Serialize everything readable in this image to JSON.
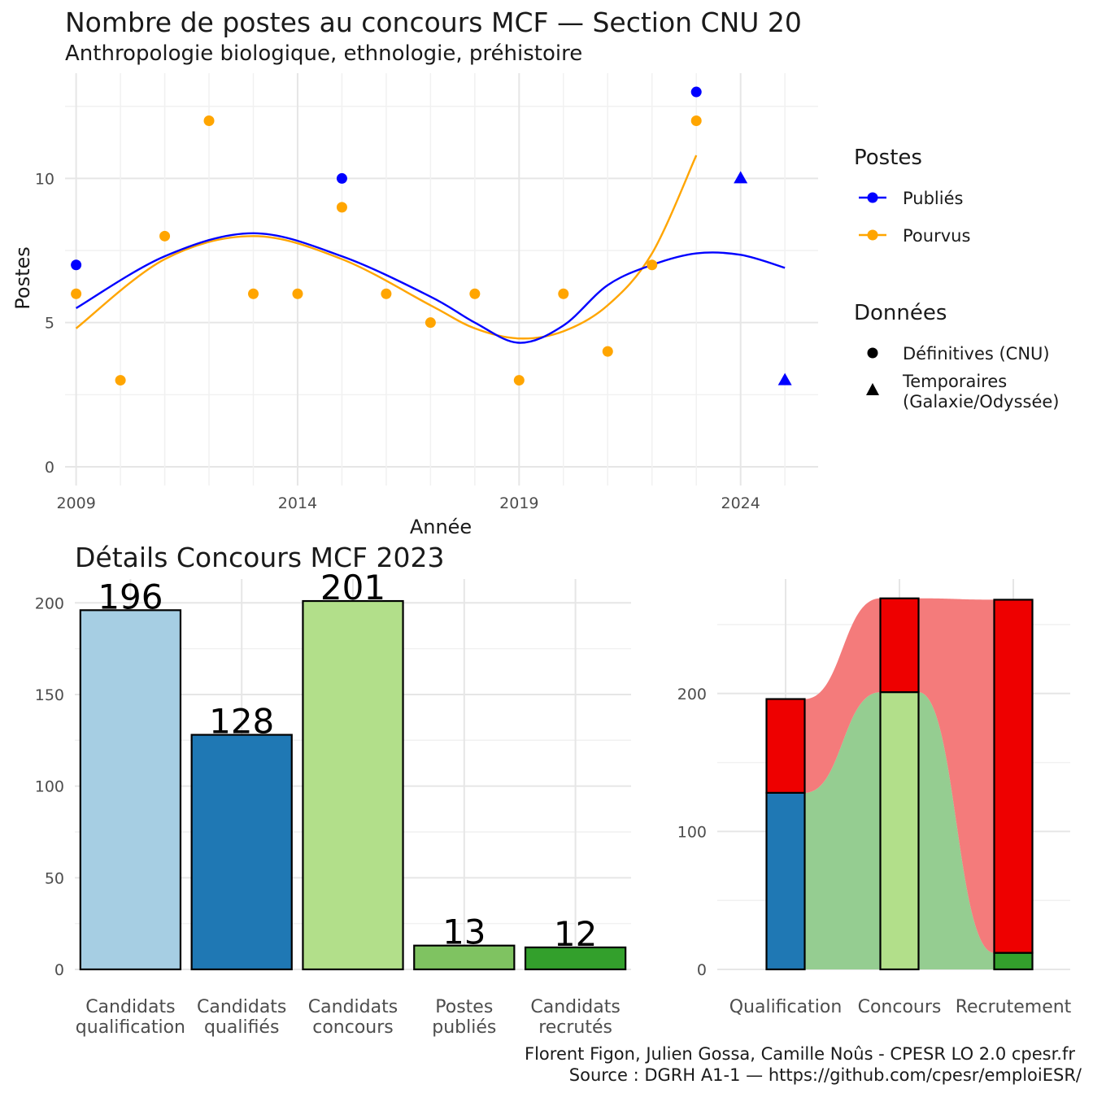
{
  "header": {
    "title": "Nombre de postes au concours MCF —  Section CNU 20",
    "subtitle": "Anthropologie biologique, ethnologie, préhistoire"
  },
  "legend": {
    "postes_title": "Postes",
    "postes_items": [
      {
        "label": "Publiés",
        "color": "#0000ff"
      },
      {
        "label": "Pourvus",
        "color": "#ffa500"
      }
    ],
    "donnees_title": "Données",
    "donnees_items": [
      {
        "label": "Définitives (CNU)",
        "shape": "circle"
      },
      {
        "label_line1": "Temporaires",
        "label_line2": "(Galaxie/Odyssée)",
        "shape": "triangle"
      }
    ]
  },
  "caption": {
    "line1": "Florent Figon, Julien Gossa, Camille Noûs - CPESR LO 2.0 cpesr.fr",
    "line2": "Source : DGRH A1-1 — https://github.com/cpesr/emploiESR/"
  },
  "chart_data": [
    {
      "type": "scatter",
      "xlabel": "Année",
      "ylabel": "Postes",
      "xlim": [
        2008.75,
        2025.75
      ],
      "ylim": [
        -0.65,
        13.65
      ],
      "x_ticks": [
        2009,
        2014,
        2019,
        2024
      ],
      "y_ticks": [
        0,
        5,
        10
      ],
      "grid": true,
      "legend_position": "right",
      "series": [
        {
          "name": "Publiés",
          "color": "#0000ff",
          "points": [
            {
              "x": 2009,
              "y": 7,
              "data": "Définitives (CNU)"
            },
            {
              "x": 2015,
              "y": 10,
              "data": "Définitives (CNU)"
            },
            {
              "x": 2023,
              "y": 13,
              "data": "Définitives (CNU)"
            },
            {
              "x": 2024,
              "y": 10,
              "data": "Temporaires"
            },
            {
              "x": 2025,
              "y": 3,
              "data": "Temporaires"
            }
          ],
          "smooth": [
            [
              2009,
              5.5
            ],
            [
              2011,
              7.3
            ],
            [
              2013,
              8.1
            ],
            [
              2015,
              7.3
            ],
            [
              2017,
              5.9
            ],
            [
              2018,
              5.0
            ],
            [
              2019,
              4.3
            ],
            [
              2020,
              4.9
            ],
            [
              2021,
              6.3
            ],
            [
              2022,
              7.0
            ],
            [
              2023,
              7.4
            ],
            [
              2024,
              7.35
            ],
            [
              2025,
              6.9
            ]
          ]
        },
        {
          "name": "Pourvus",
          "color": "#ffa500",
          "points": [
            {
              "x": 2009,
              "y": 6,
              "data": "Définitives (CNU)"
            },
            {
              "x": 2010,
              "y": 3,
              "data": "Définitives (CNU)"
            },
            {
              "x": 2011,
              "y": 8,
              "data": "Définitives (CNU)"
            },
            {
              "x": 2012,
              "y": 12,
              "data": "Définitives (CNU)"
            },
            {
              "x": 2013,
              "y": 6,
              "data": "Définitives (CNU)"
            },
            {
              "x": 2014,
              "y": 6,
              "data": "Définitives (CNU)"
            },
            {
              "x": 2015,
              "y": 9,
              "data": "Définitives (CNU)"
            },
            {
              "x": 2016,
              "y": 6,
              "data": "Définitives (CNU)"
            },
            {
              "x": 2017,
              "y": 5,
              "data": "Définitives (CNU)"
            },
            {
              "x": 2018,
              "y": 6,
              "data": "Définitives (CNU)"
            },
            {
              "x": 2019,
              "y": 3,
              "data": "Définitives (CNU)"
            },
            {
              "x": 2020,
              "y": 6,
              "data": "Définitives (CNU)"
            },
            {
              "x": 2021,
              "y": 4,
              "data": "Définitives (CNU)"
            },
            {
              "x": 2022,
              "y": 7,
              "data": "Définitives (CNU)"
            },
            {
              "x": 2023,
              "y": 12,
              "data": "Définitives (CNU)"
            }
          ],
          "smooth": [
            [
              2009,
              4.8
            ],
            [
              2011,
              7.2
            ],
            [
              2013,
              8.0
            ],
            [
              2015,
              7.2
            ],
            [
              2017,
              5.6
            ],
            [
              2018,
              4.8
            ],
            [
              2019,
              4.45
            ],
            [
              2020,
              4.7
            ],
            [
              2021,
              5.6
            ],
            [
              2022,
              7.4
            ],
            [
              2023,
              10.8
            ]
          ]
        }
      ]
    },
    {
      "type": "bar",
      "title": "Détails Concours MCF 2023",
      "categories": [
        "Candidats qualification",
        "Candidats qualifiés",
        "Candidats concours",
        "Postes publiés",
        "Candidats recrutés"
      ],
      "category_lines": [
        [
          "Candidats",
          "qualification"
        ],
        [
          "Candidats",
          "qualifiés"
        ],
        [
          "Candidats",
          "concours"
        ],
        [
          "Postes",
          "publiés"
        ],
        [
          "Candidats",
          "recrutés"
        ]
      ],
      "values": [
        196,
        128,
        201,
        13,
        12
      ],
      "colors": [
        "#a6cee3",
        "#1f78b4",
        "#b2df8a",
        "#7fc361",
        "#33a02c"
      ],
      "ylim": [
        0,
        213
      ],
      "y_ticks": [
        0,
        50,
        100,
        150,
        200
      ],
      "grid": true
    },
    {
      "type": "bar",
      "categories": [
        "Qualification",
        "Concours",
        "Recrutement"
      ],
      "series": [
        {
          "values": [
            128,
            201,
            12
          ],
          "colors": [
            "#1f78b4",
            "#b2df8a",
            "#33a02c"
          ]
        },
        {
          "values": [
            68,
            68,
            256
          ],
          "color": "#ee0000"
        }
      ],
      "flows": [
        {
          "color": "#95cd91",
          "from_bottom": [
            0,
            0,
            0
          ],
          "from_top": [
            128,
            201,
            12
          ]
        },
        {
          "color": "#f47b7b",
          "from_bottom": [
            128,
            201,
            12
          ],
          "from_top": [
            196,
            269,
            268
          ]
        }
      ],
      "ylim": [
        0,
        283
      ],
      "y_ticks": [
        0,
        100,
        200
      ],
      "grid": true
    }
  ]
}
